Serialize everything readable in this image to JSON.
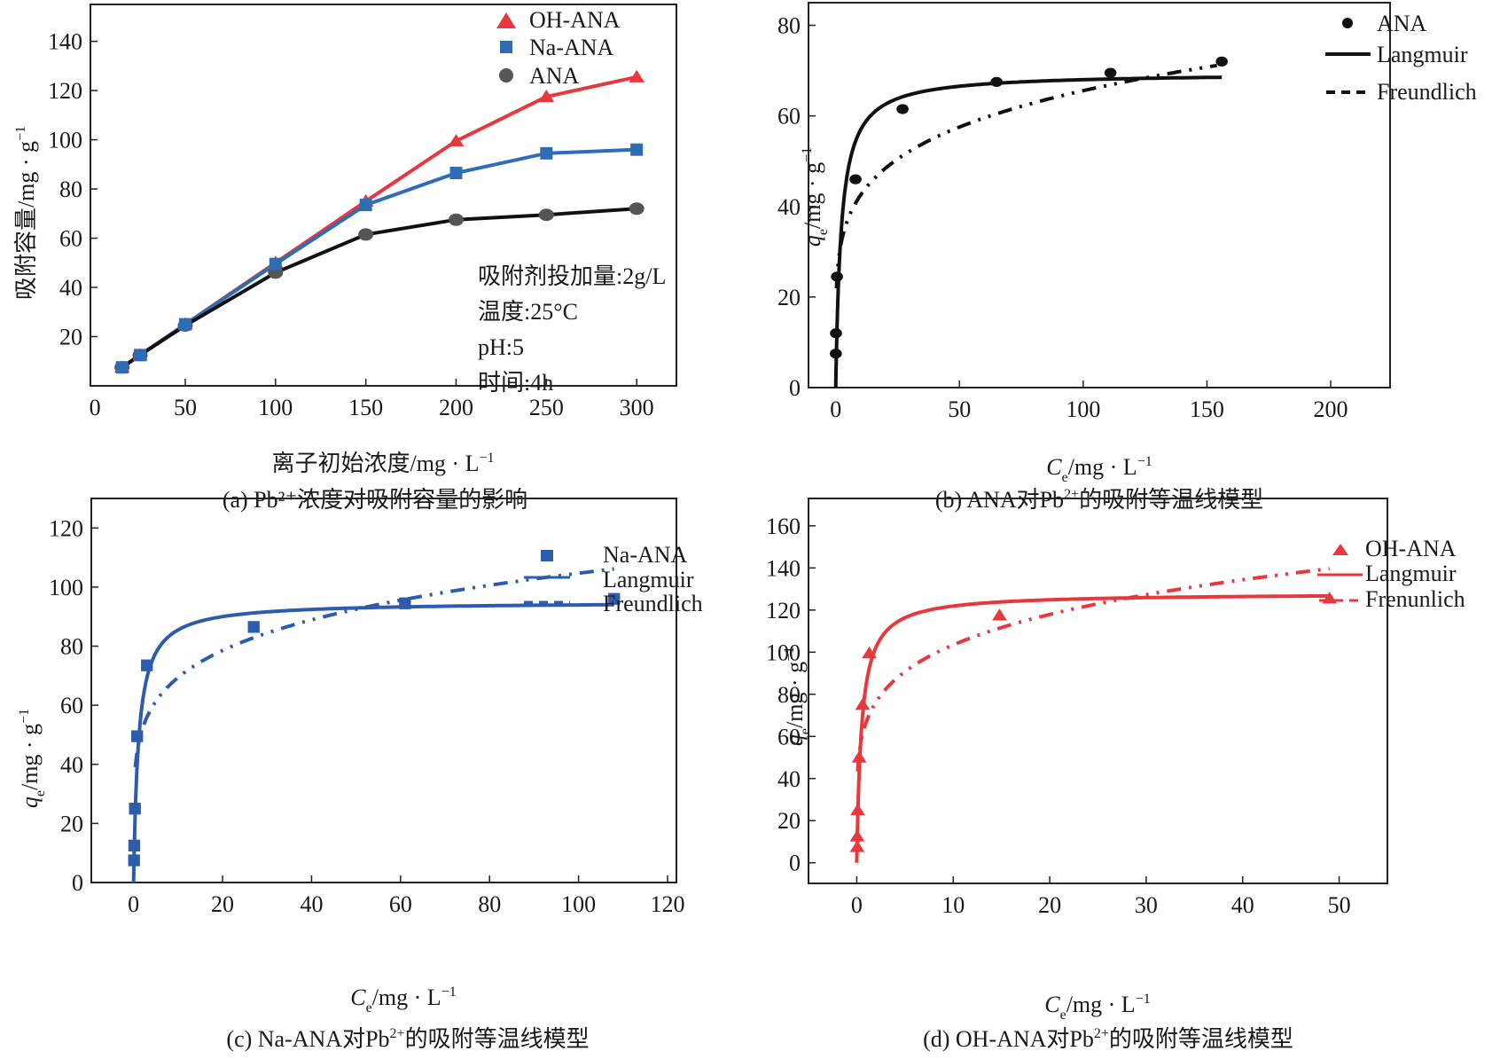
{
  "figure": {
    "panels": [
      "a",
      "b",
      "c",
      "d"
    ]
  },
  "chart_data": [
    {
      "id": "a",
      "type": "line",
      "title": "",
      "caption": "(a) Pb²⁺浓度对吸附容量的影响",
      "xlabel": "离子初始浓度/mg·L⁻¹",
      "xlabel_parts": {
        "main": "离子初始浓度/mg · L",
        "sup": "−1"
      },
      "ylabel": "吸附容量/mg·g⁻¹",
      "ylabel_parts": {
        "main": "吸附容量/mg · g",
        "sup": "−1"
      },
      "xlim": [
        -2.5,
        322
      ],
      "ylim": [
        0,
        155
      ],
      "x_ticks": [
        0,
        50,
        100,
        150,
        200,
        250,
        300
      ],
      "x_tick_labels": [
        "0",
        "50",
        "100",
        "150",
        "200",
        "250",
        "300"
      ],
      "x_tick_marks": [
        50,
        100,
        150,
        200,
        250,
        300
      ],
      "y_ticks": [
        20,
        40,
        60,
        80,
        100,
        120,
        140
      ],
      "y_tick_labels": [
        "20",
        "40",
        "60",
        "80",
        "100",
        "120",
        "140"
      ],
      "grid": false,
      "legend_position": "top-center",
      "annotations": [
        "吸附剂投加量:2g/L",
        "温度:25°C",
        "pH:5",
        "时间:4h"
      ],
      "x": [
        15,
        25,
        50,
        100,
        150,
        200,
        250,
        300
      ],
      "series": [
        {
          "name": "OH-ANA",
          "marker": "triangle",
          "color": "#e8383d",
          "values": [
            7.5,
            12.5,
            25,
            50,
            75,
            99.5,
            117.5,
            125.5
          ]
        },
        {
          "name": "Na-ANA",
          "marker": "square",
          "color": "#2e6db5",
          "values": [
            7.5,
            12.5,
            25,
            49.5,
            73.5,
            86.5,
            94.5,
            96
          ]
        },
        {
          "name": "ANA",
          "marker": "circle",
          "color": "#555555",
          "line_color": "#111111",
          "values": [
            7.5,
            12.5,
            24.5,
            46,
            61.5,
            67.5,
            69.5,
            72
          ]
        }
      ]
    },
    {
      "id": "b",
      "type": "scatter",
      "caption": "(b) ANA对Pb²⁺的吸附等温线模型",
      "caption_parts": {
        "pre": "(b) ANA对Pb",
        "sup": "2+",
        "post": "的吸附等温线模型"
      },
      "xlabel": "Ce/mg·L⁻¹",
      "ylabel": "qe/mg·g⁻¹",
      "xlim": [
        -11,
        224
      ],
      "ylim": [
        0,
        85
      ],
      "x_ticks": [
        0,
        50,
        100,
        150,
        200
      ],
      "x_tick_labels": [
        "0",
        "50",
        "100",
        "150",
        "200"
      ],
      "y_ticks": [
        0,
        20,
        40,
        60,
        80
      ],
      "y_tick_labels": [
        "0",
        "20",
        "40",
        "60",
        "80"
      ],
      "grid": false,
      "legend_position": "top-right",
      "color": "#111111",
      "marker": "circle",
      "legend": [
        "ANA",
        "Langmuir",
        "Freundlich"
      ],
      "points": {
        "x": [
          0.05,
          0.1,
          0.5,
          8,
          27,
          65,
          111,
          156
        ],
        "y": [
          7.5,
          12,
          24.5,
          46,
          61.5,
          67.5,
          69.5,
          72
        ]
      },
      "langmuir": {
        "qmax": 69.5,
        "KL": 0.45,
        "x_range": [
          0,
          156
        ]
      },
      "freundlich": {
        "KF": 27.5,
        "n": 5.3,
        "x_range": [
          0.3,
          154
        ]
      }
    },
    {
      "id": "c",
      "type": "scatter",
      "caption": "(c) Na-ANA对Pb²⁺的吸附等温线模型",
      "caption_parts": {
        "pre": "(c) Na-ANA对Pb",
        "sup": "2+",
        "post": "的吸附等温线模型"
      },
      "xlabel": "Ce/mg·L⁻¹",
      "ylabel": "qe/mg·g⁻¹",
      "xlim": [
        -9.5,
        122
      ],
      "ylim": [
        0,
        130
      ],
      "x_ticks": [
        0,
        20,
        40,
        60,
        80,
        100,
        120
      ],
      "x_tick_labels": [
        "0",
        "20",
        "40",
        "60",
        "80",
        "100",
        "120"
      ],
      "y_ticks": [
        0,
        20,
        40,
        60,
        80,
        100,
        120
      ],
      "y_tick_labels": [
        "0",
        "20",
        "40",
        "60",
        "80",
        "100",
        "120"
      ],
      "grid": false,
      "legend_position": "top-right",
      "color": "#2e5cad",
      "marker": "square",
      "legend": [
        "Na-ANA",
        "Langmuir",
        "Freundlich"
      ],
      "points": {
        "x": [
          0.1,
          0.15,
          0.3,
          0.8,
          3,
          27,
          61,
          108
        ],
        "y": [
          7.5,
          12.5,
          25,
          49.5,
          73.5,
          86.5,
          94.5,
          96
        ]
      },
      "langmuir": {
        "qmax": 95,
        "KL": 0.9,
        "x_range": [
          0,
          108
        ]
      },
      "freundlich": {
        "KF": 46,
        "n": 5.6,
        "x_range": [
          0.4,
          108
        ]
      }
    },
    {
      "id": "d",
      "type": "scatter",
      "caption": "(d) OH-ANA对Pb²⁺的吸附等温线模型",
      "caption_parts": {
        "pre": "(d) OH-ANA对Pb",
        "sup": "2+",
        "post": "的吸附等温线模型"
      },
      "xlabel": "Ce/mg·L⁻¹",
      "ylabel": "qe/mg·g⁻¹",
      "xlim": [
        -5,
        55
      ],
      "ylim": [
        -9.8,
        173
      ],
      "x_ticks": [
        0,
        10,
        20,
        30,
        40,
        50
      ],
      "x_tick_labels": [
        "0",
        "10",
        "20",
        "30",
        "40",
        "50"
      ],
      "y_ticks": [
        0,
        20,
        40,
        60,
        80,
        100,
        120,
        140,
        160
      ],
      "y_tick_labels": [
        "0",
        "20",
        "40",
        "60",
        "80",
        "100",
        "120",
        "140",
        "160"
      ],
      "grid": false,
      "legend_position": "top-right",
      "color": "#e8383d",
      "marker": "triangle",
      "legend": [
        "OH-ANA",
        "Langmuir",
        "Frenunlich"
      ],
      "points": {
        "x": [
          0.05,
          0.05,
          0.1,
          0.25,
          0.6,
          1.3,
          14.8,
          49
        ],
        "y": [
          7.5,
          12.5,
          25,
          50,
          75,
          99.5,
          117.5,
          125.5
        ]
      },
      "langmuir": {
        "qmax": 128,
        "KL": 2.0,
        "x_range": [
          0,
          49
        ]
      },
      "freundlich": {
        "KF": 67,
        "n": 5.3,
        "x_range": [
          0.1,
          49
        ]
      }
    }
  ]
}
